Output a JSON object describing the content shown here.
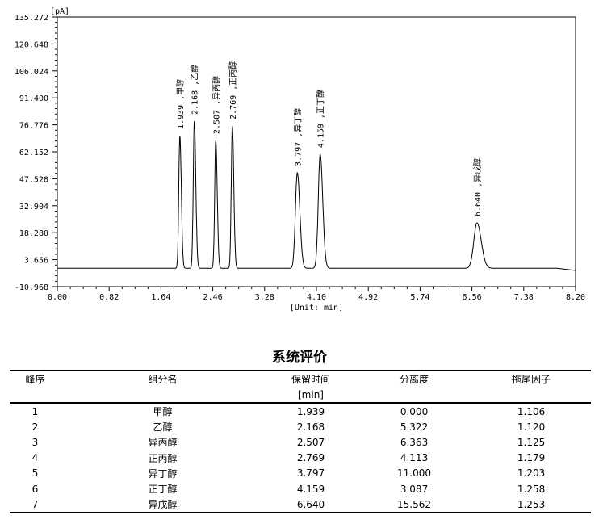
{
  "chart_data": {
    "type": "line",
    "ylabel": "[pA]",
    "xlabel": "[Unit: min]",
    "xlim": [
      0,
      8.2
    ],
    "ylim": [
      -10.968,
      135.272
    ],
    "x_ticks": [
      "0.00",
      "0.82",
      "1.64",
      "2.46",
      "3.28",
      "4.10",
      "4.92",
      "5.74",
      "6.56",
      "7.38",
      "8.20"
    ],
    "y_ticks": [
      "135.272",
      "120.648",
      "106.024",
      "91.400",
      "76.776",
      "62.152",
      "47.528",
      "32.904",
      "18.280",
      "3.656",
      "-10.968"
    ],
    "baseline": -1.0,
    "peaks": [
      {
        "rt": 1.939,
        "label": "1.939 ,甲醇",
        "height": 70.9
      },
      {
        "rt": 2.168,
        "label": "2.168 ,乙醇",
        "height": 78.8
      },
      {
        "rt": 2.507,
        "label": "2.507 ,异丙醇",
        "height": 68.3
      },
      {
        "rt": 2.769,
        "label": "2.769 ,正丙醇",
        "height": 76.2
      },
      {
        "rt": 3.797,
        "label": "3.797 ,异丁醇",
        "height": 50.8
      },
      {
        "rt": 4.159,
        "label": "4.159 ,正丁醇",
        "height": 60.8
      },
      {
        "rt": 6.64,
        "label": "6.640 ,异戊醇",
        "height": 23.6
      }
    ]
  },
  "table": {
    "title": "系统评价",
    "headers": [
      "峰序",
      "组分名",
      "保留时间",
      "分离度",
      "拖尾因子"
    ],
    "unit": "[min]",
    "rows": [
      [
        "1",
        "甲醇",
        "1.939",
        "0.000",
        "1.106"
      ],
      [
        "2",
        "乙醇",
        "2.168",
        "5.322",
        "1.120"
      ],
      [
        "3",
        "异丙醇",
        "2.507",
        "6.363",
        "1.125"
      ],
      [
        "4",
        "正丙醇",
        "2.769",
        "4.113",
        "1.179"
      ],
      [
        "5",
        "异丁醇",
        "3.797",
        "11.000",
        "1.203"
      ],
      [
        "6",
        "正丁醇",
        "4.159",
        "3.087",
        "1.258"
      ],
      [
        "7",
        "异戊醇",
        "6.640",
        "15.562",
        "1.253"
      ]
    ]
  }
}
